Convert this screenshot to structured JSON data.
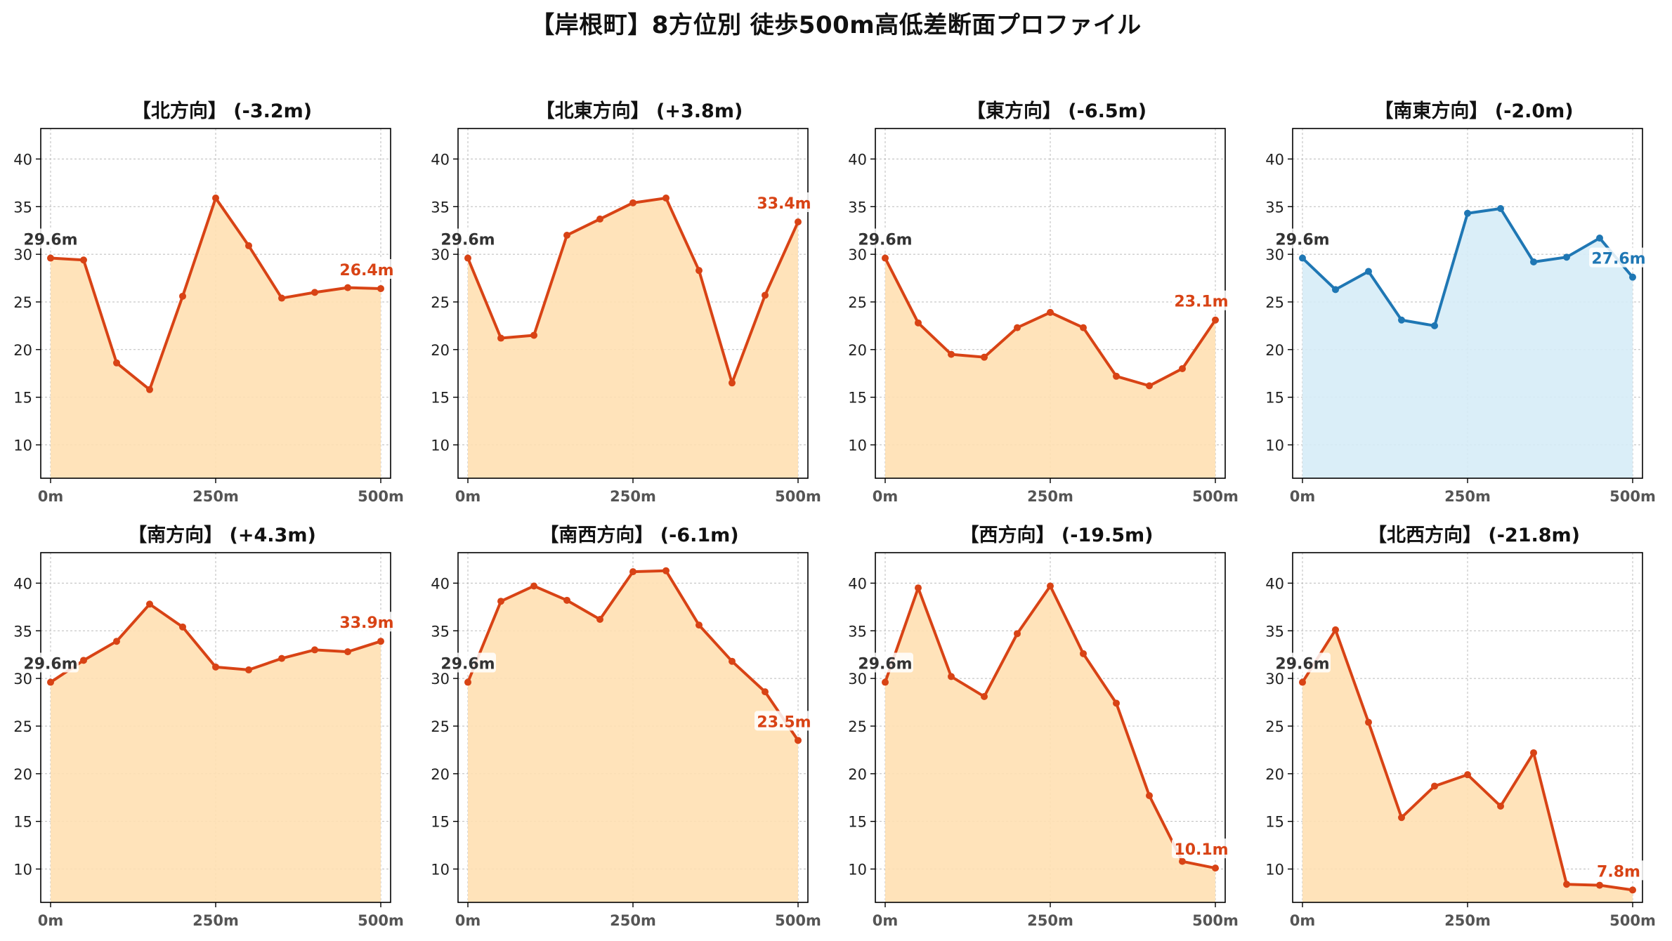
{
  "title": "【岸根町】8方位別 徒歩500m高低差断面プロファイル",
  "colors": {
    "down": "#d84315",
    "down_fill": "#ffe0b2",
    "up": "#1f77b4",
    "up_fill": "#d6ecf7",
    "start_label": "#333333",
    "axis": "#000000",
    "grid": "#bbbbbb"
  },
  "chart_data": [
    {
      "type": "area",
      "title": "【北方向】 (-3.2m)",
      "x": [
        0,
        50,
        100,
        150,
        200,
        250,
        300,
        350,
        400,
        450,
        500
      ],
      "y": [
        29.6,
        29.4,
        18.6,
        15.8,
        25.6,
        35.9,
        30.9,
        25.4,
        26.0,
        26.5,
        26.4
      ],
      "start_label": "29.6m",
      "end_label": "26.4m",
      "xticks": [
        "0m",
        "250m",
        "500m"
      ],
      "yticks": [
        10,
        15,
        20,
        25,
        30,
        35,
        40
      ],
      "ylim": [
        6.5,
        43.2
      ],
      "grid": true,
      "scheme": "down"
    },
    {
      "type": "area",
      "title": "【北東方向】 (+3.8m)",
      "x": [
        0,
        50,
        100,
        150,
        200,
        250,
        300,
        350,
        400,
        450,
        500
      ],
      "y": [
        29.6,
        21.2,
        21.5,
        32.0,
        33.7,
        35.4,
        35.9,
        28.3,
        16.5,
        25.7,
        33.4
      ],
      "start_label": "29.6m",
      "end_label": "33.4m",
      "xticks": [
        "0m",
        "250m",
        "500m"
      ],
      "yticks": [
        10,
        15,
        20,
        25,
        30,
        35,
        40
      ],
      "ylim": [
        6.5,
        43.2
      ],
      "grid": true,
      "scheme": "down"
    },
    {
      "type": "area",
      "title": "【東方向】 (-6.5m)",
      "x": [
        0,
        50,
        100,
        150,
        200,
        250,
        300,
        350,
        400,
        450,
        500
      ],
      "y": [
        29.6,
        22.8,
        19.5,
        19.2,
        22.3,
        23.9,
        22.3,
        17.2,
        16.2,
        18.0,
        23.1
      ],
      "start_label": "29.6m",
      "end_label": "23.1m",
      "xticks": [
        "0m",
        "250m",
        "500m"
      ],
      "yticks": [
        10,
        15,
        20,
        25,
        30,
        35,
        40
      ],
      "ylim": [
        6.5,
        43.2
      ],
      "grid": true,
      "scheme": "down"
    },
    {
      "type": "area",
      "title": "【南東方向】 (-2.0m)",
      "x": [
        0,
        50,
        100,
        150,
        200,
        250,
        300,
        350,
        400,
        450,
        500
      ],
      "y": [
        29.6,
        26.3,
        28.2,
        23.1,
        22.5,
        34.3,
        34.8,
        29.2,
        29.7,
        31.7,
        27.6
      ],
      "start_label": "29.6m",
      "end_label": "27.6m",
      "xticks": [
        "0m",
        "250m",
        "500m"
      ],
      "yticks": [
        10,
        15,
        20,
        25,
        30,
        35,
        40
      ],
      "ylim": [
        6.5,
        43.2
      ],
      "grid": true,
      "scheme": "up"
    },
    {
      "type": "area",
      "title": "【南方向】 (+4.3m)",
      "x": [
        0,
        50,
        100,
        150,
        200,
        250,
        300,
        350,
        400,
        450,
        500
      ],
      "y": [
        29.6,
        31.9,
        33.9,
        37.8,
        35.4,
        31.2,
        30.9,
        32.1,
        33.0,
        32.8,
        33.9
      ],
      "start_label": "29.6m",
      "end_label": "33.9m",
      "xticks": [
        "0m",
        "250m",
        "500m"
      ],
      "yticks": [
        10,
        15,
        20,
        25,
        30,
        35,
        40
      ],
      "ylim": [
        6.5,
        43.2
      ],
      "grid": true,
      "scheme": "down"
    },
    {
      "type": "area",
      "title": "【南西方向】 (-6.1m)",
      "x": [
        0,
        50,
        100,
        150,
        200,
        250,
        300,
        350,
        400,
        450,
        500
      ],
      "y": [
        29.6,
        38.1,
        39.7,
        38.2,
        36.2,
        41.2,
        41.3,
        35.6,
        31.8,
        28.6,
        23.5
      ],
      "start_label": "29.6m",
      "end_label": "23.5m",
      "xticks": [
        "0m",
        "250m",
        "500m"
      ],
      "yticks": [
        10,
        15,
        20,
        25,
        30,
        35,
        40
      ],
      "ylim": [
        6.5,
        43.2
      ],
      "grid": true,
      "scheme": "down"
    },
    {
      "type": "area",
      "title": "【西方向】 (-19.5m)",
      "x": [
        0,
        50,
        100,
        150,
        200,
        250,
        300,
        350,
        400,
        450,
        500
      ],
      "y": [
        29.6,
        39.5,
        30.2,
        28.1,
        34.7,
        39.7,
        32.6,
        27.4,
        17.7,
        10.8,
        10.1
      ],
      "start_label": "29.6m",
      "end_label": "10.1m",
      "xticks": [
        "0m",
        "250m",
        "500m"
      ],
      "yticks": [
        10,
        15,
        20,
        25,
        30,
        35,
        40
      ],
      "ylim": [
        6.5,
        43.2
      ],
      "grid": true,
      "scheme": "down"
    },
    {
      "type": "area",
      "title": "【北西方向】 (-21.8m)",
      "x": [
        0,
        50,
        100,
        150,
        200,
        250,
        300,
        350,
        400,
        450,
        500
      ],
      "y": [
        29.6,
        35.1,
        25.4,
        15.4,
        18.7,
        19.9,
        16.6,
        22.2,
        8.4,
        8.3,
        7.8
      ],
      "start_label": "29.6m",
      "end_label": "7.8m",
      "xticks": [
        "0m",
        "250m",
        "500m"
      ],
      "yticks": [
        10,
        15,
        20,
        25,
        30,
        35,
        40
      ],
      "ylim": [
        6.5,
        43.2
      ],
      "grid": true,
      "scheme": "down"
    }
  ]
}
